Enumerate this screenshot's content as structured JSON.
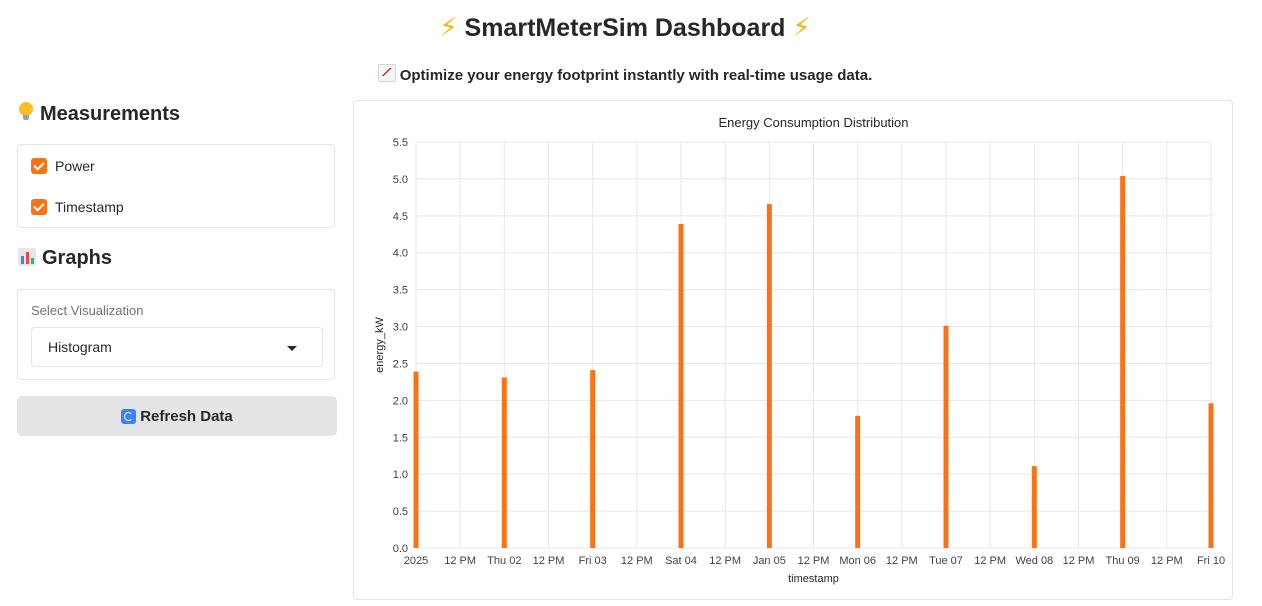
{
  "header": {
    "title": "SmartMeterSim Dashboard",
    "subtitle": "Optimize your energy footprint instantly with real-time usage data."
  },
  "sidebar": {
    "measurements_heading": "Measurements",
    "measurements": [
      {
        "label": "Power",
        "checked": true
      },
      {
        "label": "Timestamp",
        "checked": true
      }
    ],
    "graphs_heading": "Graphs",
    "select_label": "Select Visualization",
    "select_value": "Histogram",
    "refresh_label": "Refresh Data"
  },
  "icons": {
    "title_left": "lightning-icon",
    "title_right": "lightning-icon",
    "subtitle": "chart-increasing-icon",
    "measurements": "light-bulb-icon",
    "graphs": "bar-chart-icon",
    "refresh": "refresh-icon"
  },
  "colors": {
    "accent": "#f97316",
    "bar": "#f97316"
  },
  "chart_data": {
    "type": "bar",
    "title": "Energy Consumption Distribution",
    "xlabel": "timestamp",
    "ylabel": "energy_kW",
    "ylim": [
      0,
      5.5
    ],
    "yticks": [
      "0.0",
      "0.5",
      "1.0",
      "1.5",
      "2.0",
      "2.5",
      "3.0",
      "3.5",
      "4.0",
      "4.5",
      "5.0",
      "5.5"
    ],
    "xticks": [
      "2025",
      "12 PM",
      "Thu 02",
      "12 PM",
      "Fri 03",
      "12 PM",
      "Sat 04",
      "12 PM",
      "Jan 05",
      "12 PM",
      "Mon 06",
      "12 PM",
      "Tue 07",
      "12 PM",
      "Wed 08",
      "12 PM",
      "Thu 09",
      "12 PM",
      "Fri 10"
    ],
    "x": [
      "2025-01-01",
      "2025-01-02",
      "2025-01-03",
      "2025-01-04",
      "2025-01-05",
      "2025-01-06",
      "2025-01-07",
      "2025-01-08",
      "2025-01-09",
      "2025-01-10"
    ],
    "values": [
      2.39,
      2.31,
      2.41,
      4.39,
      4.66,
      1.79,
      3.01,
      1.11,
      5.04,
      1.96
    ],
    "grid": true,
    "legend": "none"
  }
}
